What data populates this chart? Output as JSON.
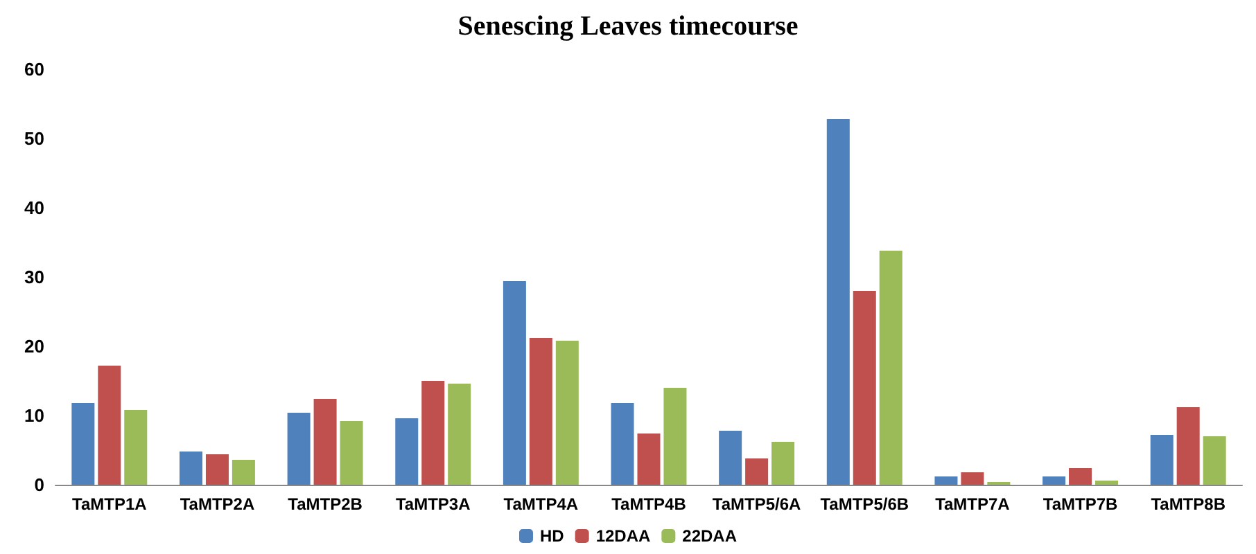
{
  "chart_data": {
    "type": "bar",
    "title": "Senescing Leaves timecourse",
    "categories": [
      "TaMTP1A",
      "TaMTP2A",
      "TaMTP2B",
      "TaMTP3A",
      "TaMTP4A",
      "TaMTP4B",
      "TaMTP5/6A",
      "TaMTP5/6B",
      "TaMTP7A",
      "TaMTP7B",
      "TaMTP8B"
    ],
    "series": [
      {
        "name": "HD",
        "color": "#4f81bd",
        "values": [
          11.8,
          4.8,
          10.4,
          9.6,
          29.4,
          11.8,
          7.8,
          52.8,
          1.2,
          1.2,
          7.2
        ]
      },
      {
        "name": "12DAA",
        "color": "#c0504d",
        "values": [
          17.2,
          4.4,
          12.4,
          15,
          21.2,
          7.4,
          3.8,
          28,
          1.8,
          2.4,
          11.2
        ]
      },
      {
        "name": "22DAA",
        "color": "#9bbb59",
        "values": [
          10.8,
          3.6,
          9.2,
          14.6,
          20.8,
          14,
          6.2,
          33.8,
          0.4,
          0.6,
          7
        ]
      }
    ],
    "ylim": [
      0,
      60
    ],
    "yticks": [
      0,
      10,
      20,
      30,
      40,
      50,
      60
    ],
    "grid": false,
    "legend": "bottom"
  }
}
